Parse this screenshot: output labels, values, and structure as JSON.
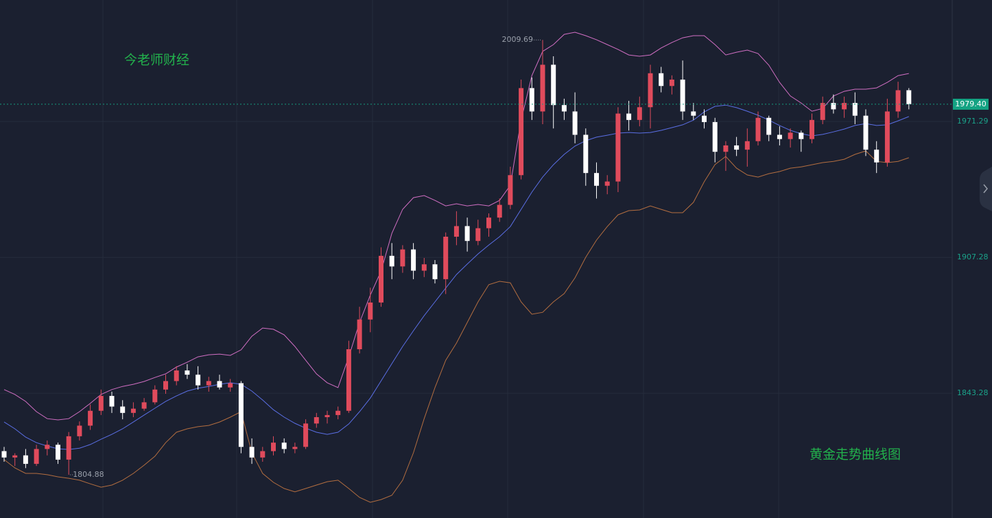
{
  "chart_data": {
    "type": "candlestick",
    "ylim": [
      1784.5,
      2028.5
    ],
    "yticks": [
      1971.29,
      1907.28,
      1843.28
    ],
    "grid": true,
    "up_color": "#e04b5c",
    "down_color": "#ffffff",
    "open": [
      1816,
      1813,
      1814,
      1810,
      1817,
      1819,
      1812,
      1823,
      1828,
      1835,
      1842,
      1837,
      1834,
      1836,
      1839,
      1845,
      1849,
      1854,
      1852,
      1847,
      1849,
      1846,
      1848,
      1818,
      1813,
      1816,
      1820,
      1817,
      1818,
      1829,
      1832,
      1833,
      1835,
      1864,
      1878,
      1886,
      1908,
      1903,
      1911,
      1901,
      1904,
      1897,
      1917,
      1922,
      1915,
      1921,
      1926,
      1932,
      1946,
      1987,
      1976,
      1998,
      1979,
      1976,
      1965,
      1947,
      1941,
      1943,
      1975,
      1972,
      1978,
      1994,
      1988,
      1991,
      1976,
      1974,
      1971,
      1957,
      1960,
      1958,
      1962,
      1973,
      1965,
      1963,
      1966,
      1963,
      1972,
      1980,
      1977,
      1980,
      1974,
      1958,
      1952,
      1976,
      1986
    ],
    "high": [
      1818,
      1815,
      1817,
      1819,
      1821,
      1820,
      1825,
      1830,
      1838,
      1845,
      1844,
      1840,
      1839,
      1841,
      1847,
      1852,
      1856,
      1857,
      1856,
      1851,
      1852,
      1850,
      1849,
      1822,
      1818,
      1823,
      1822,
      1820,
      1831,
      1834,
      1835,
      1837,
      1868,
      1884,
      1893,
      1912,
      1914,
      1913,
      1914,
      1907,
      1906,
      1919,
      1929,
      1926,
      1925,
      1928,
      1935,
      1950,
      1991,
      1992,
      2009.69,
      2002,
      1982,
      1985,
      1968,
      1952,
      1946,
      1978,
      1981,
      1983,
      1998,
      1997,
      1993,
      2000,
      1980,
      1977,
      1973,
      1962,
      1964,
      1968,
      1976,
      1974,
      1969,
      1968,
      1967,
      1975,
      1983,
      1984,
      1983,
      1985,
      1977,
      1962,
      1982,
      1990,
      1987
    ],
    "low": [
      1811,
      1809,
      1808,
      1809,
      1814,
      1810,
      1804.88,
      1821,
      1826,
      1833,
      1834,
      1831,
      1832,
      1835,
      1838,
      1843,
      1847,
      1850,
      1845,
      1844,
      1845,
      1844,
      1815,
      1810,
      1811,
      1814,
      1815,
      1815,
      1817,
      1827,
      1829,
      1831,
      1834,
      1862,
      1872,
      1884,
      1897,
      1900,
      1897,
      1898,
      1895,
      1890,
      1913,
      1910,
      1913,
      1917,
      1924,
      1930,
      1944,
      1972,
      1970,
      1968,
      1972,
      1961,
      1941,
      1935,
      1937,
      1938,
      1967,
      1969,
      1968,
      1985,
      1984,
      1972,
      1972,
      1968,
      1952,
      1948,
      1955,
      1950,
      1960,
      1962,
      1960,
      1959,
      1957,
      1961,
      1970,
      1975,
      1973,
      1970,
      1955,
      1947,
      1950,
      1973,
      1977
    ],
    "close": [
      1813,
      1814,
      1810,
      1817,
      1819,
      1812,
      1823,
      1828,
      1835,
      1842,
      1837,
      1834,
      1836,
      1839,
      1845,
      1849,
      1854,
      1852,
      1847,
      1849,
      1846,
      1848,
      1818,
      1813,
      1816,
      1820,
      1817,
      1818,
      1829,
      1832,
      1833,
      1835,
      1864,
      1878,
      1886,
      1908,
      1903,
      1911,
      1901,
      1904,
      1897,
      1917,
      1922,
      1915,
      1921,
      1926,
      1932,
      1946,
      1987,
      1976,
      1998,
      1979,
      1976,
      1965,
      1947,
      1941,
      1943,
      1975,
      1972,
      1978,
      1994,
      1988,
      1991,
      1976,
      1974,
      1971,
      1957,
      1960,
      1958,
      1962,
      1973,
      1965,
      1963,
      1966,
      1963,
      1972,
      1980,
      1977,
      1980,
      1974,
      1958,
      1952,
      1976,
      1986,
      1979.4
    ],
    "lines": [
      {
        "color": "#d26fc4",
        "values": [
          1845,
          1842.7,
          1839.4,
          1834.6,
          1831.3,
          1830.7,
          1831.3,
          1834.6,
          1838.5,
          1842.7,
          1845,
          1846.5,
          1847.5,
          1848.8,
          1850.7,
          1852.4,
          1855.6,
          1857.9,
          1860.4,
          1861.4,
          1861.7,
          1861.1,
          1863.7,
          1870.1,
          1874,
          1873.4,
          1870.8,
          1865.3,
          1858.8,
          1852.4,
          1848.2,
          1845.9,
          1860.4,
          1876.6,
          1889.5,
          1900.8,
          1918.6,
          1929.9,
          1935.4,
          1936.4,
          1934.1,
          1931.5,
          1932.5,
          1931.5,
          1932.2,
          1931.5,
          1934.1,
          1941.2,
          1971.9,
          1992.9,
          2004.3,
          2007.5,
          2012.3,
          2013.3,
          2011.7,
          2009.8,
          2007.5,
          2005.2,
          2002.6,
          2002,
          2002.6,
          2005.9,
          2008.5,
          2010.7,
          2011.7,
          2011.7,
          2007.5,
          2002.6,
          2003.9,
          2004.9,
          2003.3,
          1997.8,
          1989.7,
          1983.3,
          1980,
          1976.1,
          1977.4,
          1983.3,
          1985.5,
          1986.5,
          1986.5,
          1987.1,
          1989.7,
          1992.9,
          1993.9
        ]
      },
      {
        "color": "#5b6fe6",
        "values": [
          1829.7,
          1826.5,
          1822.6,
          1820,
          1818.4,
          1817.1,
          1816.8,
          1817.4,
          1819.1,
          1821.6,
          1823.9,
          1826.5,
          1829.7,
          1833,
          1836.2,
          1839.4,
          1842,
          1844.3,
          1845.6,
          1846.5,
          1847.5,
          1848.2,
          1847.5,
          1844.3,
          1840.1,
          1835.5,
          1832,
          1829.1,
          1826.8,
          1824.9,
          1823.9,
          1824.9,
          1828.8,
          1834.6,
          1841,
          1849.1,
          1857.2,
          1865.3,
          1872.7,
          1879.8,
          1886.3,
          1892.8,
          1899.2,
          1904.1,
          1908.9,
          1913.1,
          1917,
          1921.8,
          1929.9,
          1938,
          1945.1,
          1950.9,
          1955.8,
          1959.7,
          1962.2,
          1963.9,
          1964.8,
          1965.8,
          1966.1,
          1965.8,
          1966.1,
          1967.1,
          1968.4,
          1969.7,
          1971.9,
          1975.8,
          1978.4,
          1979,
          1977.8,
          1976.1,
          1974.2,
          1971.9,
          1969.4,
          1967.1,
          1965.5,
          1964.5,
          1965.2,
          1966.4,
          1967.7,
          1969.4,
          1970.3,
          1969.4,
          1969.7,
          1971.6,
          1973.6
        ]
      },
      {
        "color": "#b46e40",
        "values": [
          1812,
          1808.1,
          1805.5,
          1805.5,
          1804.9,
          1803.9,
          1803.2,
          1802.3,
          1800.6,
          1799,
          1800,
          1802.3,
          1805.5,
          1809.4,
          1813.6,
          1820,
          1824.9,
          1826.5,
          1827.5,
          1828.1,
          1829.7,
          1832,
          1834.6,
          1815.2,
          1805.5,
          1801.3,
          1798.4,
          1796.8,
          1798.4,
          1800,
          1801.6,
          1802.3,
          1798.4,
          1794.2,
          1791.9,
          1793.2,
          1795.2,
          1802.3,
          1815.2,
          1831.3,
          1845.9,
          1858.8,
          1866.9,
          1876.6,
          1886.3,
          1894.4,
          1896,
          1895.3,
          1886.3,
          1880.5,
          1881.4,
          1886.3,
          1890.2,
          1897.6,
          1907.3,
          1915.4,
          1921.8,
          1927.3,
          1929.3,
          1929.6,
          1931.5,
          1929.9,
          1928.3,
          1928.3,
          1933.2,
          1942.9,
          1951,
          1954.8,
          1949.3,
          1946.1,
          1945.1,
          1946.7,
          1947.7,
          1949.3,
          1949.9,
          1950.9,
          1951.9,
          1952.5,
          1953.5,
          1955.8,
          1957.4,
          1952.5,
          1951.9,
          1952.5,
          1954.2
        ]
      }
    ],
    "last_price": {
      "value": 1979.4,
      "label": "1979.40"
    },
    "annotations": [
      "今老师财经",
      "黄金走势曲线图"
    ]
  }
}
